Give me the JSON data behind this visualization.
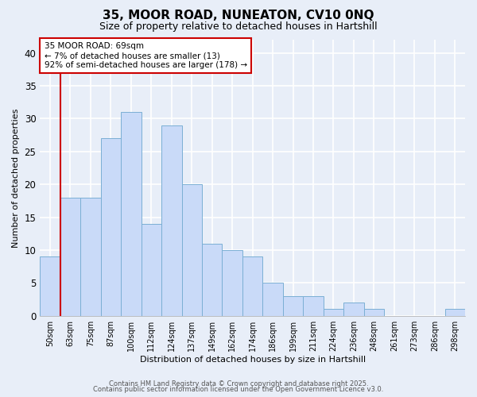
{
  "title": "35, MOOR ROAD, NUNEATON, CV10 0NQ",
  "subtitle": "Size of property relative to detached houses in Hartshill",
  "xlabel": "Distribution of detached houses by size in Hartshill",
  "ylabel": "Number of detached properties",
  "bar_labels": [
    "50sqm",
    "63sqm",
    "75sqm",
    "87sqm",
    "100sqm",
    "112sqm",
    "124sqm",
    "137sqm",
    "149sqm",
    "162sqm",
    "174sqm",
    "186sqm",
    "199sqm",
    "211sqm",
    "224sqm",
    "236sqm",
    "248sqm",
    "261sqm",
    "273sqm",
    "286sqm",
    "298sqm"
  ],
  "bar_values": [
    9,
    18,
    18,
    27,
    31,
    14,
    29,
    20,
    11,
    10,
    9,
    5,
    3,
    3,
    1,
    2,
    1,
    0,
    0,
    0,
    1
  ],
  "bar_color": "#c9daf8",
  "bar_edgecolor": "#7bafd4",
  "vline_x": 1,
  "vline_color": "#cc0000",
  "ylim": [
    0,
    42
  ],
  "yticks": [
    0,
    5,
    10,
    15,
    20,
    25,
    30,
    35,
    40
  ],
  "annotation_title": "35 MOOR ROAD: 69sqm",
  "annotation_line1": "← 7% of detached houses are smaller (13)",
  "annotation_line2": "92% of semi-detached houses are larger (178) →",
  "annotation_box_color": "#ffffff",
  "annotation_box_edgecolor": "#cc0000",
  "footer_line1": "Contains HM Land Registry data © Crown copyright and database right 2025.",
  "footer_line2": "Contains public sector information licensed under the Open Government Licence v3.0.",
  "bg_color": "#e8eef8",
  "grid_color": "#ffffff"
}
